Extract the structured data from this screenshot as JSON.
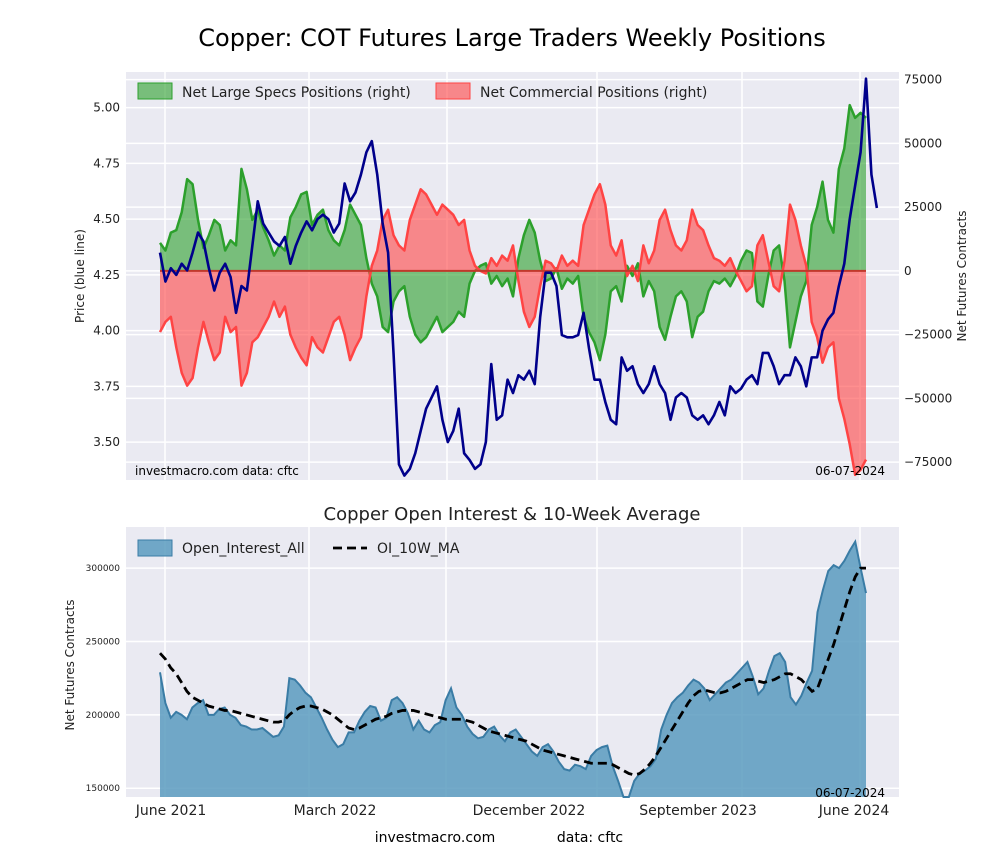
{
  "title": "Copper: COT Futures Large Traders Weekly Positions",
  "footer": {
    "site": "investmacro.com",
    "source": "data: cftc"
  },
  "colors": {
    "panel_bg": "#eaeaf2",
    "price": "#00008b",
    "specs": "#2ca02c",
    "commercial": "#ff4444",
    "open_interest": "#5b9bc0",
    "moving_average": "#000000"
  },
  "chart_data": [
    {
      "type": "line",
      "title": "",
      "ylabel": "Price (blue line)",
      "ylabel_right": "Net Futures Contracts",
      "ylim": [
        3.33,
        5.16
      ],
      "ylim_right": [
        -82000,
        78000
      ],
      "yticks": [
        3.5,
        3.75,
        4.0,
        4.25,
        4.5,
        4.75,
        5.0
      ],
      "yticks_right": [
        -75000,
        -50000,
        -25000,
        0,
        25000,
        50000,
        75000
      ],
      "grid": true,
      "legend_position": "top",
      "annotation_left": "investmacro.com   data: cftc",
      "annotation_right": "06-07-2024",
      "series": [
        {
          "name": "Net Large Specs Positions (right)",
          "values": [
            11000,
            8000,
            15000,
            16000,
            23000,
            36000,
            34000,
            20000,
            9000,
            14000,
            20000,
            18000,
            8000,
            12000,
            10000,
            40000,
            32000,
            20000,
            24000,
            17000,
            12000,
            6000,
            10000,
            8000,
            21000,
            25000,
            30000,
            31000,
            18000,
            22000,
            24000,
            16000,
            12000,
            10000,
            16000,
            26000,
            22000,
            18000,
            5000,
            -5000,
            -10000,
            -22000,
            -24000,
            -12000,
            -8000,
            -6000,
            -18000,
            -25000,
            -28000,
            -26000,
            -22000,
            -18000,
            -24000,
            -22000,
            -20000,
            -16000,
            -18000,
            -5000,
            0,
            2000,
            3000,
            -5000,
            -2000,
            -6000,
            -3000,
            -10000,
            5000,
            14000,
            20000,
            15000,
            4000,
            -4000,
            -3000,
            1000,
            -7000,
            -3000,
            -5000,
            -2000,
            -18000,
            -24000,
            -28000,
            -35000,
            -25000,
            -8000,
            -6000,
            -12000,
            2000,
            -2000,
            3000,
            -10000,
            -4000,
            -8000,
            -22000,
            -27000,
            -18000,
            -10000,
            -8000,
            -12000,
            -26000,
            -18000,
            -16000,
            -8000,
            -4000,
            -5000,
            -3000,
            -6000,
            -2000,
            4000,
            8000,
            7000,
            -12000,
            -14000,
            -2000,
            8000,
            10000,
            -4000,
            -30000,
            -20000,
            -10000,
            -4000,
            18000,
            25000,
            35000,
            20000,
            15000,
            40000,
            48000,
            65000,
            60000,
            62000,
            60000
          ],
          "color": "#2ca02c"
        },
        {
          "name": "Net Commercial Positions (right)",
          "values": [
            -24000,
            -20000,
            -18000,
            -30000,
            -40000,
            -45000,
            -42000,
            -30000,
            -20000,
            -28000,
            -35000,
            -32000,
            -18000,
            -24000,
            -22000,
            -45000,
            -40000,
            -28000,
            -26000,
            -22000,
            -18000,
            -12000,
            -18000,
            -14000,
            -25000,
            -30000,
            -34000,
            -37000,
            -26000,
            -30000,
            -32000,
            -26000,
            -20000,
            -18000,
            -25000,
            -35000,
            -30000,
            -26000,
            -10000,
            2000,
            8000,
            20000,
            24000,
            14000,
            10000,
            8000,
            20000,
            26000,
            32000,
            30000,
            26000,
            22000,
            26000,
            24000,
            22000,
            18000,
            20000,
            8000,
            2000,
            0,
            -1000,
            5000,
            2000,
            6000,
            4000,
            10000,
            -4000,
            -16000,
            -22000,
            -18000,
            -6000,
            4000,
            3000,
            0,
            6000,
            2000,
            4000,
            2000,
            18000,
            24000,
            30000,
            34000,
            26000,
            10000,
            6000,
            12000,
            -2000,
            2000,
            -4000,
            10000,
            3000,
            8000,
            20000,
            24000,
            16000,
            10000,
            8000,
            12000,
            24000,
            18000,
            16000,
            10000,
            5000,
            4000,
            2000,
            5000,
            0,
            -4000,
            -8000,
            -6000,
            10000,
            14000,
            4000,
            -6000,
            -8000,
            4000,
            26000,
            20000,
            10000,
            2000,
            -20000,
            -26000,
            -36000,
            -30000,
            -28000,
            -50000,
            -58000,
            -68000,
            -80000,
            -78000,
            -74000
          ],
          "color": "#ff4444"
        },
        {
          "name": "Price",
          "values": [
            4.35,
            4.22,
            4.28,
            4.25,
            4.3,
            4.27,
            4.35,
            4.44,
            4.4,
            4.28,
            4.18,
            4.26,
            4.3,
            4.24,
            4.08,
            4.2,
            4.18,
            4.38,
            4.58,
            4.48,
            4.44,
            4.4,
            4.38,
            4.42,
            4.3,
            4.38,
            4.44,
            4.49,
            4.45,
            4.5,
            4.52,
            4.5,
            4.44,
            4.48,
            4.66,
            4.58,
            4.62,
            4.7,
            4.8,
            4.85,
            4.7,
            4.48,
            4.35,
            3.9,
            3.4,
            3.35,
            3.38,
            3.45,
            3.55,
            3.65,
            3.7,
            3.75,
            3.6,
            3.5,
            3.55,
            3.65,
            3.45,
            3.42,
            3.38,
            3.4,
            3.5,
            3.85,
            3.6,
            3.62,
            3.78,
            3.72,
            3.8,
            3.78,
            3.82,
            3.76,
            4.06,
            4.26,
            4.26,
            4.2,
            3.98,
            3.97,
            3.97,
            3.98,
            4.08,
            3.92,
            3.78,
            3.78,
            3.68,
            3.6,
            3.58,
            3.88,
            3.82,
            3.84,
            3.76,
            3.72,
            3.76,
            3.84,
            3.76,
            3.72,
            3.6,
            3.7,
            3.72,
            3.7,
            3.62,
            3.6,
            3.62,
            3.58,
            3.62,
            3.68,
            3.62,
            3.75,
            3.72,
            3.74,
            3.78,
            3.8,
            3.76,
            3.9,
            3.9,
            3.84,
            3.76,
            3.8,
            3.8,
            3.88,
            3.84,
            3.75,
            3.88,
            3.88,
            4.0,
            4.05,
            4.08,
            4.2,
            4.3,
            4.5,
            4.65,
            4.8,
            5.13,
            4.7,
            4.55
          ],
          "color": "#00008b"
        }
      ]
    },
    {
      "type": "area",
      "title": "Copper Open Interest & 10-Week Average",
      "xlabel": "",
      "ylabel": "Net Futures Contracts",
      "ylim": [
        144000,
        328000
      ],
      "yticks": [
        150000,
        200000,
        250000,
        300000
      ],
      "x_tick_labels": [
        "June 2021",
        "March 2022",
        "December 2022",
        "September 2023",
        "June 2024"
      ],
      "grid": true,
      "legend_position": "top",
      "annotation_right": "06-07-2024",
      "series": [
        {
          "name": "Open_Interest_All",
          "values": [
            229000,
            208000,
            198000,
            202000,
            200000,
            197000,
            205000,
            208000,
            210000,
            200000,
            200000,
            204000,
            205000,
            200000,
            198000,
            193000,
            192000,
            190000,
            190000,
            191000,
            188000,
            185000,
            186000,
            192000,
            225000,
            224000,
            220000,
            215000,
            212000,
            205000,
            198000,
            190000,
            183000,
            178000,
            180000,
            188000,
            188000,
            196000,
            202000,
            206000,
            205000,
            196000,
            198000,
            210000,
            212000,
            208000,
            201000,
            190000,
            196000,
            190000,
            188000,
            193000,
            195000,
            210000,
            218000,
            205000,
            200000,
            192000,
            187000,
            184000,
            185000,
            190000,
            192000,
            186000,
            182000,
            188000,
            190000,
            185000,
            180000,
            175000,
            172000,
            178000,
            180000,
            175000,
            168000,
            163000,
            162000,
            166000,
            165000,
            163000,
            172000,
            176000,
            178000,
            179000,
            165000,
            155000,
            143000,
            140000,
            155000,
            160000,
            162000,
            165000,
            170000,
            190000,
            200000,
            208000,
            212000,
            215000,
            220000,
            224000,
            222000,
            218000,
            210000,
            214000,
            218000,
            222000,
            224000,
            228000,
            232000,
            236000,
            226000,
            214000,
            218000,
            230000,
            240000,
            242000,
            236000,
            212000,
            207000,
            213000,
            222000,
            230000,
            270000,
            285000,
            298000,
            302000,
            300000,
            305000,
            312000,
            318000,
            300000,
            283000
          ],
          "color": "#5b9bc0"
        },
        {
          "name": "OI_10W_MA",
          "values": [
            242000,
            238000,
            232000,
            228000,
            222000,
            216000,
            212000,
            210000,
            208000,
            206000,
            205000,
            204000,
            203000,
            203000,
            202000,
            201000,
            200000,
            199000,
            198000,
            197000,
            196000,
            195000,
            195000,
            196000,
            200000,
            203000,
            205000,
            206000,
            206000,
            205000,
            204000,
            202000,
            200000,
            197000,
            194000,
            191000,
            190000,
            191000,
            193000,
            195000,
            197000,
            198000,
            199000,
            201000,
            202000,
            203000,
            203000,
            203000,
            202000,
            201000,
            200000,
            199000,
            198000,
            197000,
            197000,
            197000,
            197000,
            196000,
            195000,
            193000,
            191000,
            189000,
            188000,
            187000,
            186000,
            185000,
            184000,
            183000,
            182000,
            180000,
            178000,
            176000,
            175000,
            174000,
            173000,
            172000,
            171000,
            170000,
            169000,
            168000,
            167000,
            167000,
            167000,
            167000,
            166000,
            164000,
            162000,
            160000,
            159000,
            160000,
            163000,
            167000,
            172000,
            178000,
            184000,
            190000,
            196000,
            202000,
            208000,
            213000,
            216000,
            217000,
            216000,
            215000,
            215000,
            216000,
            218000,
            220000,
            222000,
            224000,
            224000,
            223000,
            222000,
            223000,
            224000,
            226000,
            228000,
            228000,
            226000,
            224000,
            220000,
            216000,
            218000,
            228000,
            238000,
            248000,
            260000,
            272000,
            284000,
            294000,
            300000,
            300000
          ],
          "color": "#000000"
        }
      ]
    }
  ]
}
